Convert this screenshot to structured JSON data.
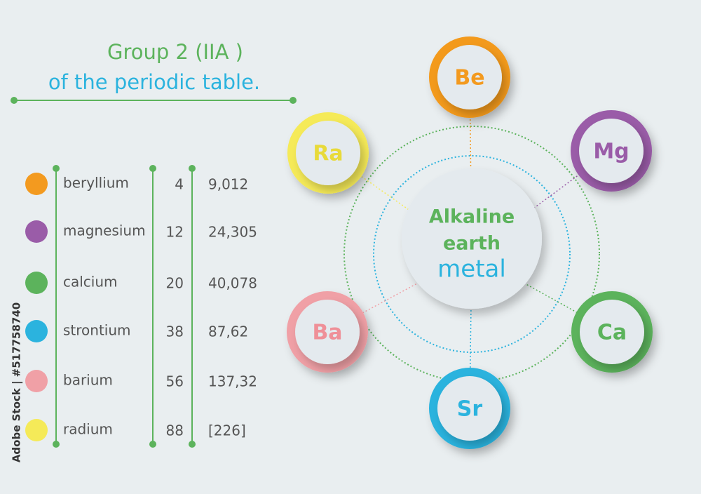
{
  "title": {
    "line1": "Group 2 (IIA )",
    "line2": "of the periodic table."
  },
  "table": {
    "rows": [
      [
        "beryllium",
        "4",
        "9,012"
      ],
      [
        "magnesium",
        "12",
        "24,305"
      ],
      [
        "calcium",
        "20",
        "40,078"
      ],
      [
        "strontium",
        "38",
        "87,62"
      ],
      [
        "barium",
        "56",
        "137,32"
      ],
      [
        "radium",
        "88",
        "[226]"
      ]
    ]
  },
  "center": {
    "lines": [
      "Alkaline",
      "earth",
      "metal"
    ]
  },
  "nodes": [
    {
      "label": "Be"
    },
    {
      "label": "Mg"
    },
    {
      "label": "Ca"
    },
    {
      "label": "Sr"
    },
    {
      "label": "Ba"
    },
    {
      "label": "Ra"
    }
  ],
  "watermark": "Adobe Stock | #517758740"
}
